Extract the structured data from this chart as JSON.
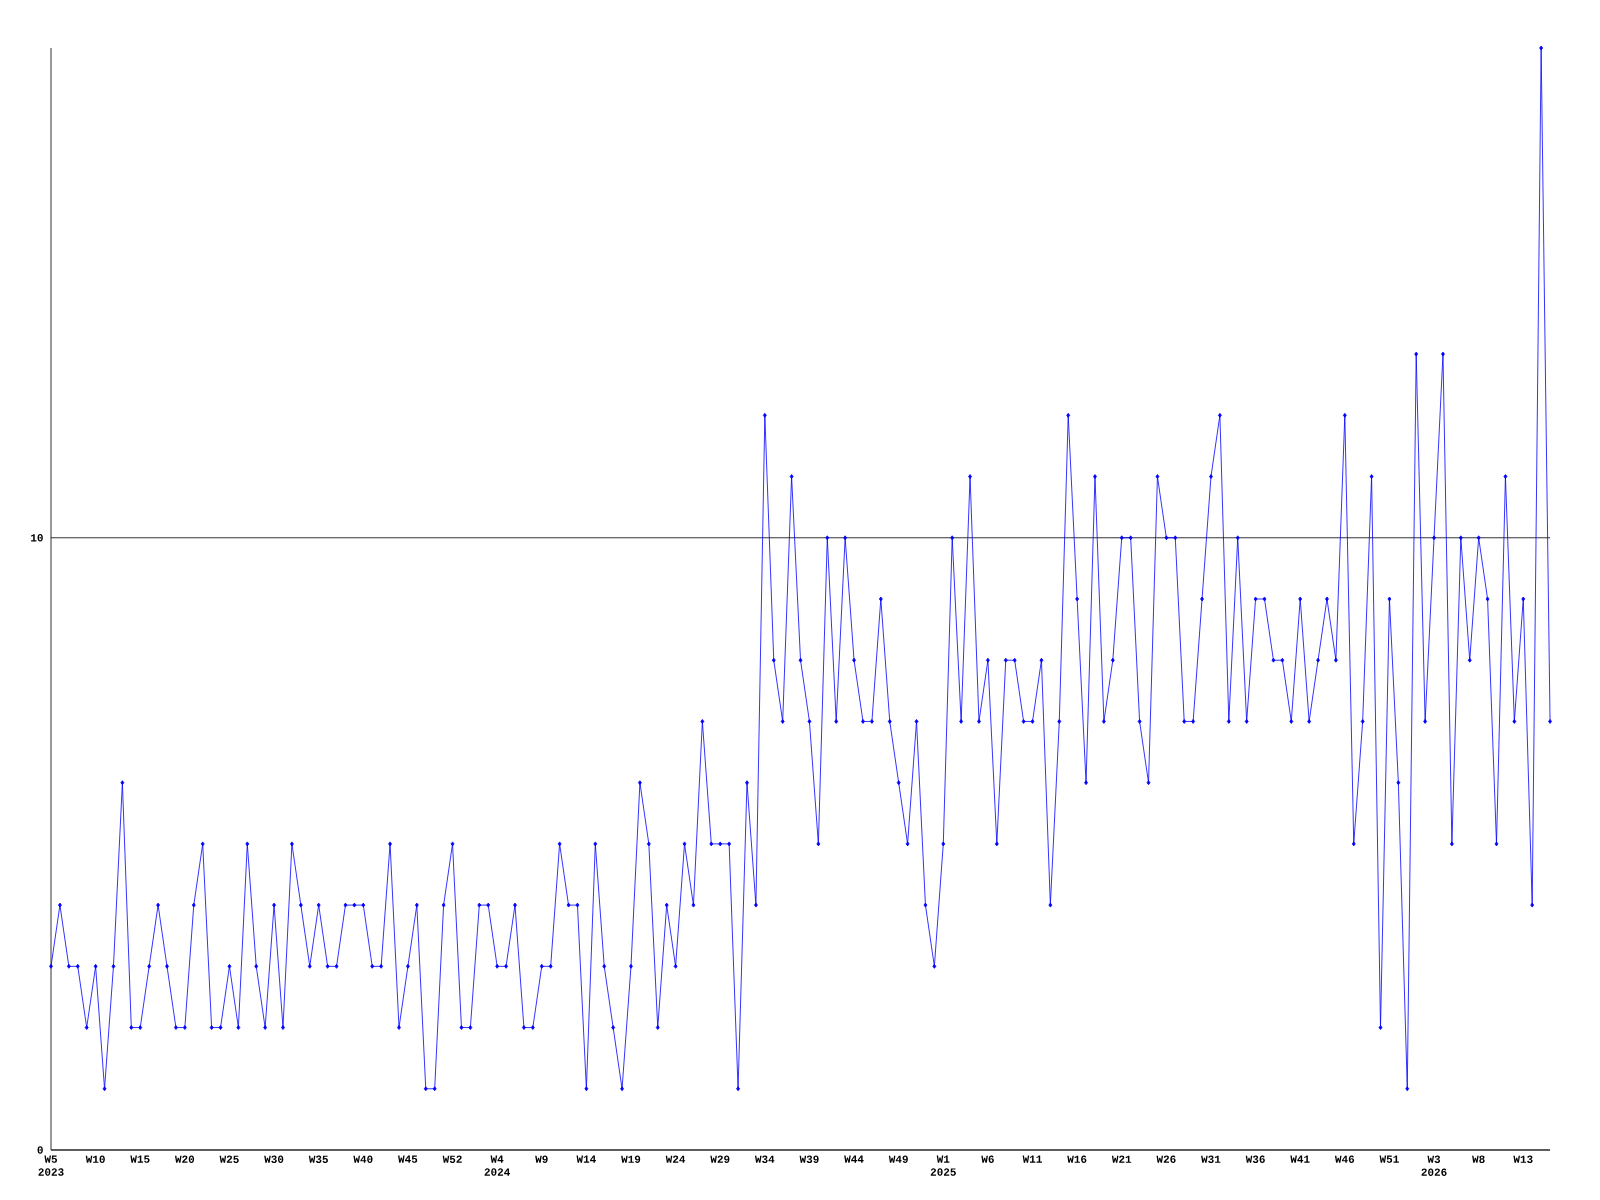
{
  "chart_data": {
    "type": "line",
    "categories": [
      "W5 2023",
      null,
      null,
      null,
      null,
      "W10",
      null,
      null,
      null,
      null,
      "W15",
      null,
      null,
      null,
      null,
      "W20",
      null,
      null,
      null,
      null,
      "W25",
      null,
      null,
      null,
      null,
      "W30",
      null,
      null,
      null,
      null,
      "W35",
      null,
      null,
      null,
      null,
      "W40",
      null,
      null,
      null,
      null,
      "W45",
      null,
      null,
      null,
      null,
      "W52",
      null,
      null,
      null,
      null,
      "W4 2024",
      null,
      null,
      null,
      null,
      "W9",
      null,
      null,
      null,
      null,
      "W14",
      null,
      null,
      null,
      null,
      "W19",
      null,
      null,
      null,
      null,
      "W24",
      null,
      null,
      null,
      null,
      "W29",
      null,
      null,
      null,
      null,
      "W34",
      null,
      null,
      null,
      null,
      "W39",
      null,
      null,
      null,
      null,
      "W44",
      null,
      null,
      null,
      null,
      "W49",
      null,
      null,
      null,
      null,
      "W1 2025",
      null,
      null,
      null,
      null,
      "W6",
      null,
      null,
      null,
      null,
      "W11",
      null,
      null,
      null,
      null,
      "W16",
      null,
      null,
      null,
      null,
      "W21",
      null,
      null,
      null,
      null,
      "W26",
      null,
      null,
      null,
      null,
      "W31",
      null,
      null,
      null,
      null,
      "W36",
      null,
      null,
      null,
      null,
      "W41",
      null,
      null,
      null,
      null,
      "W46",
      null,
      null,
      null,
      null,
      "W51",
      null,
      null,
      null,
      null,
      "W3 2026",
      null,
      null,
      null,
      null,
      "W8",
      null,
      null,
      null,
      null,
      "W13",
      null,
      null,
      null
    ],
    "series": [
      {
        "color": "#0000ff",
        "values": [
          3,
          4,
          3,
          3,
          2,
          3,
          1,
          3,
          6,
          2,
          2,
          3,
          4,
          3,
          2,
          2,
          4,
          5,
          2,
          2,
          3,
          2,
          5,
          3,
          2,
          4,
          2,
          5,
          4,
          3,
          4,
          3,
          3,
          4,
          4,
          4,
          3,
          3,
          5,
          2,
          3,
          4,
          1,
          1,
          4,
          5,
          2,
          2,
          4,
          4,
          3,
          3,
          4,
          2,
          2,
          3,
          3,
          5,
          4,
          4,
          1,
          5,
          3,
          2,
          1,
          3,
          6,
          5,
          2,
          4,
          3,
          5,
          4,
          7,
          5,
          5,
          5,
          1,
          6,
          4,
          12,
          8,
          7,
          11,
          8,
          7,
          5,
          10,
          7,
          10,
          8,
          7,
          7,
          9,
          7,
          6,
          5,
          7,
          4,
          3,
          5,
          10,
          7,
          11,
          7,
          8,
          5,
          8,
          8,
          7,
          7,
          8,
          4,
          7,
          12,
          9,
          6,
          11,
          7,
          8,
          10,
          10,
          7,
          6,
          11,
          10,
          10,
          7,
          7,
          9,
          11,
          12,
          7,
          10,
          7,
          9,
          9,
          8,
          8,
          7,
          9,
          7,
          8,
          9,
          8,
          12,
          5,
          7,
          11,
          2,
          9,
          6,
          1,
          13,
          7,
          10,
          13,
          5,
          10,
          8,
          10,
          9,
          5,
          11,
          7,
          9,
          4,
          18,
          7
        ]
      }
    ],
    "ylim": [
      0,
      18
    ],
    "yticks": [
      0,
      10
    ],
    "grid": "y",
    "marker": "diamond",
    "line_style": "solid"
  }
}
